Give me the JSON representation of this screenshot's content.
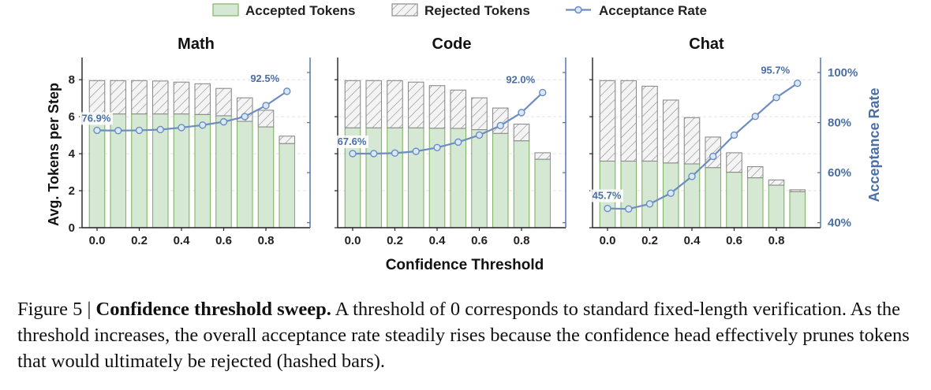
{
  "legend": {
    "accepted": "Accepted Tokens",
    "rejected": "Rejected Tokens",
    "rate": "Acceptance Rate"
  },
  "colors": {
    "accepted_fill": "#d5e8d4",
    "accepted_edge": "#82b366",
    "rejected_fill": "#f2f2f2",
    "rejected_edge": "#8c8c8c",
    "rate_line": "#6c8ebf",
    "rate_axis": "#4a6fa5"
  },
  "chart_data": {
    "type": "bar",
    "xlabel": "Confidence Threshold",
    "ylabel": "Avg. Tokens per Step",
    "ylabel_right": "Acceptance Rate",
    "x": [
      0.0,
      0.1,
      0.2,
      0.3,
      0.4,
      0.5,
      0.6,
      0.7,
      0.8,
      0.9
    ],
    "x_ticks": [
      "0.0",
      "0.2",
      "0.4",
      "0.6",
      "0.8"
    ],
    "y_ticks": [
      "0",
      "2",
      "4",
      "6",
      "8"
    ],
    "ylim": [
      0,
      9.2
    ],
    "right_ticks": [
      "40%",
      "60%",
      "80%",
      "100%"
    ],
    "right_ylim": [
      38,
      106
    ],
    "grid": "horizontal dashed",
    "legend_position": "top",
    "panels": [
      {
        "title": "Math",
        "accepted": [
          6.15,
          6.15,
          6.15,
          6.15,
          6.15,
          6.12,
          6.05,
          5.75,
          5.45,
          4.55
        ],
        "rejected": [
          1.8,
          1.8,
          1.8,
          1.78,
          1.72,
          1.66,
          1.48,
          1.27,
          0.9,
          0.4
        ],
        "acceptance_rate": [
          76.9,
          76.8,
          76.9,
          77.2,
          78.0,
          79.0,
          80.3,
          82.4,
          86.8,
          92.5
        ],
        "start_label": "76.9%",
        "end_label": "92.5%"
      },
      {
        "title": "Code",
        "accepted": [
          5.4,
          5.4,
          5.4,
          5.4,
          5.38,
          5.37,
          5.3,
          5.1,
          4.7,
          3.7
        ],
        "rejected": [
          2.55,
          2.55,
          2.55,
          2.47,
          2.3,
          2.07,
          1.72,
          1.37,
          0.9,
          0.35
        ],
        "acceptance_rate": [
          67.6,
          67.6,
          67.8,
          68.5,
          70.0,
          72.2,
          75.0,
          78.8,
          84.0,
          92.0
        ],
        "start_label": "67.6%",
        "end_label": "92.0%"
      },
      {
        "title": "Chat",
        "accepted": [
          3.6,
          3.6,
          3.6,
          3.5,
          3.45,
          3.25,
          3.0,
          2.7,
          2.3,
          1.95
        ],
        "rejected": [
          4.35,
          4.35,
          4.05,
          3.4,
          2.5,
          1.65,
          1.05,
          0.6,
          0.28,
          0.1
        ],
        "acceptance_rate": [
          45.7,
          45.5,
          47.5,
          51.8,
          58.5,
          66.5,
          75.0,
          82.5,
          90.0,
          95.7
        ],
        "start_label": "45.7%",
        "end_label": "95.7%"
      }
    ]
  },
  "caption": {
    "prefix": "Figure 5 | ",
    "bold": "Confidence threshold sweep.",
    "text": " A threshold of 0 corresponds to standard fixed-length verification. As the threshold increases, the overall acceptance rate steadily rises because the confidence head effectively prunes tokens that would ultimately be rejected (hashed bars)."
  }
}
